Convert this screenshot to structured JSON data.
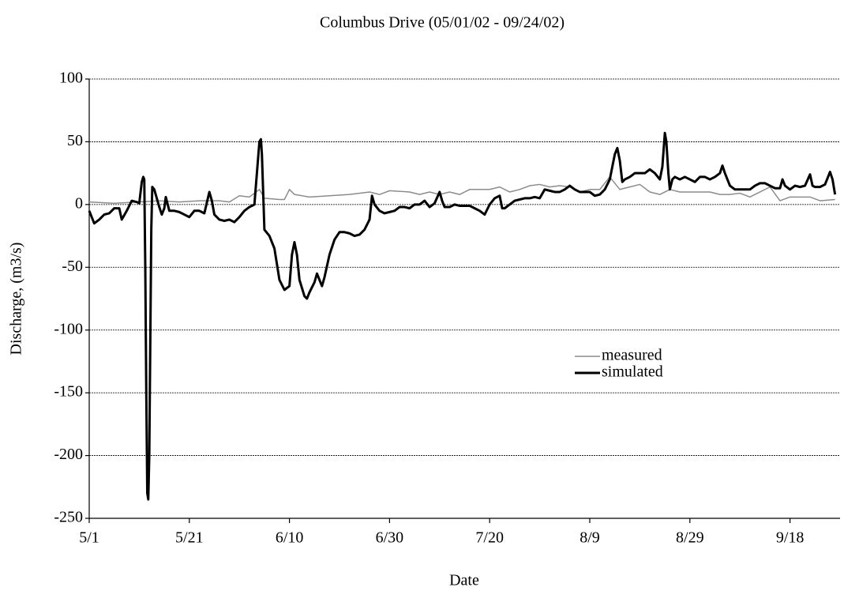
{
  "chart_data": {
    "type": "line",
    "title": "Columbus Drive (05/01/02 - 09/24/02)",
    "x_label": "Date",
    "y_label": "Discharge, (m3/s)",
    "xlim": [
      0,
      150
    ],
    "xticks": [
      {
        "value": 0,
        "label": "5/1"
      },
      {
        "value": 20,
        "label": "5/21"
      },
      {
        "value": 40,
        "label": "6/10"
      },
      {
        "value": 60,
        "label": "6/30"
      },
      {
        "value": 80,
        "label": "7/20"
      },
      {
        "value": 100,
        "label": "8/9"
      },
      {
        "value": 120,
        "label": "8/29"
      },
      {
        "value": 140,
        "label": "9/18"
      }
    ],
    "ylim": [
      -250,
      100
    ],
    "yticks": [
      100,
      50,
      0,
      -50,
      -100,
      -150,
      -200,
      -250
    ],
    "grid": true,
    "series": [
      {
        "name": "measured",
        "color": "#8c8c8c",
        "width": 1.5,
        "x": [
          0,
          5,
          10,
          14,
          18,
          22,
          26,
          28,
          30,
          32,
          34,
          35,
          38,
          39,
          40,
          41,
          44,
          48,
          52,
          56,
          58,
          60,
          64,
          66,
          68,
          70,
          72,
          74,
          76,
          80,
          82,
          84,
          86,
          88,
          90,
          92,
          94,
          96,
          98,
          100,
          102,
          104,
          106,
          108,
          110,
          112,
          114,
          116,
          118,
          120,
          124,
          126,
          128,
          130,
          132,
          134,
          136,
          138,
          140,
          142,
          144,
          146,
          149
        ],
        "values": [
          2,
          1,
          2,
          3,
          2,
          3,
          3,
          2,
          7,
          6,
          12,
          5,
          4,
          4,
          12,
          8,
          6,
          7,
          8,
          10,
          8,
          11,
          10,
          8,
          10,
          8,
          10,
          8,
          12,
          12,
          14,
          10,
          12,
          15,
          16,
          14,
          15,
          14,
          10,
          12,
          12,
          22,
          12,
          14,
          16,
          10,
          8,
          12,
          10,
          10,
          10,
          8,
          8,
          9,
          6,
          10,
          14,
          3,
          6,
          6,
          6,
          3,
          4
        ]
      },
      {
        "name": "simulated",
        "color": "#000000",
        "width": 3,
        "x": [
          0,
          1,
          2,
          3,
          4,
          5,
          6,
          6.5,
          7.5,
          8.5,
          9.5,
          10,
          10.5,
          10.8,
          11,
          11.2,
          11.4,
          11.6,
          11.8,
          12,
          12.2,
          12.4,
          12.6,
          13,
          13.5,
          14,
          14.5,
          15,
          15.3,
          16,
          17,
          18,
          19,
          20,
          21,
          22,
          23,
          24,
          24.5,
          25,
          26,
          27,
          28,
          29,
          30,
          31,
          32,
          33,
          34,
          34.3,
          34.5,
          35,
          36,
          37,
          38,
          39,
          40,
          40.5,
          41,
          41.5,
          42,
          43,
          43.5,
          44,
          45,
          45.5,
          46,
          46.5,
          47,
          48,
          49,
          50,
          51,
          52,
          53,
          54,
          55,
          56,
          56.5,
          57,
          58,
          59,
          60,
          61,
          62,
          63,
          64,
          65,
          66,
          67,
          68,
          69,
          70,
          70.5,
          71,
          72,
          73,
          74,
          75,
          76,
          77,
          78,
          79,
          80,
          81,
          82,
          82.5,
          83,
          84,
          85,
          86,
          87,
          88,
          89,
          90,
          91,
          92,
          93,
          94,
          95,
          96,
          97,
          98,
          99,
          100,
          101,
          102,
          103,
          104,
          105,
          105.5,
          106,
          106.5,
          107,
          108,
          109,
          110,
          111,
          112,
          113,
          114,
          114.5,
          115,
          115.3,
          115.7,
          116,
          116.5,
          117,
          118,
          119,
          120,
          121,
          122,
          123,
          124,
          125,
          126,
          126.5,
          127,
          128,
          129,
          130,
          131,
          132,
          133,
          134,
          135,
          136,
          137,
          138,
          138.5,
          139,
          140,
          141,
          142,
          143,
          144,
          144.5,
          145,
          146,
          147,
          148,
          148.5,
          149
        ],
        "values": [
          -5,
          -15,
          -12,
          -8,
          -7,
          -3,
          -3,
          -12,
          -5,
          3,
          2,
          1,
          18,
          22,
          20,
          -50,
          -150,
          -230,
          -235,
          -200,
          -110,
          -20,
          14,
          12,
          5,
          -2,
          -8,
          -3,
          6,
          -5,
          -5,
          -6,
          -8,
          -10,
          -5,
          -5,
          -7,
          10,
          3,
          -8,
          -12,
          -13,
          -12,
          -14,
          -10,
          -5,
          -2,
          0,
          50,
          52,
          40,
          -20,
          -25,
          -35,
          -60,
          -68,
          -65,
          -40,
          -30,
          -40,
          -60,
          -73,
          -75,
          -70,
          -62,
          -55,
          -60,
          -65,
          -58,
          -40,
          -28,
          -22,
          -22,
          -23,
          -25,
          -24,
          -20,
          -12,
          7,
          0,
          -5,
          -7,
          -6,
          -5,
          -2,
          -2,
          -3,
          0,
          0,
          3,
          -2,
          1,
          10,
          3,
          -2,
          -2,
          0,
          -1,
          -1,
          -1,
          -3,
          -5,
          -8,
          0,
          5,
          7,
          -3,
          -3,
          0,
          3,
          4,
          5,
          5,
          6,
          5,
          12,
          11,
          10,
          10,
          12,
          15,
          12,
          10,
          10,
          10,
          7,
          8,
          12,
          20,
          40,
          45,
          35,
          18,
          20,
          22,
          25,
          25,
          25,
          28,
          25,
          20,
          30,
          57,
          50,
          25,
          12,
          20,
          22,
          20,
          22,
          20,
          18,
          22,
          22,
          20,
          22,
          25,
          31,
          25,
          15,
          12,
          12,
          12,
          12,
          15,
          17,
          17,
          15,
          13,
          13,
          20,
          15,
          12,
          15,
          14,
          15,
          24,
          15,
          14,
          14,
          16,
          26,
          20,
          8
        ]
      }
    ]
  }
}
